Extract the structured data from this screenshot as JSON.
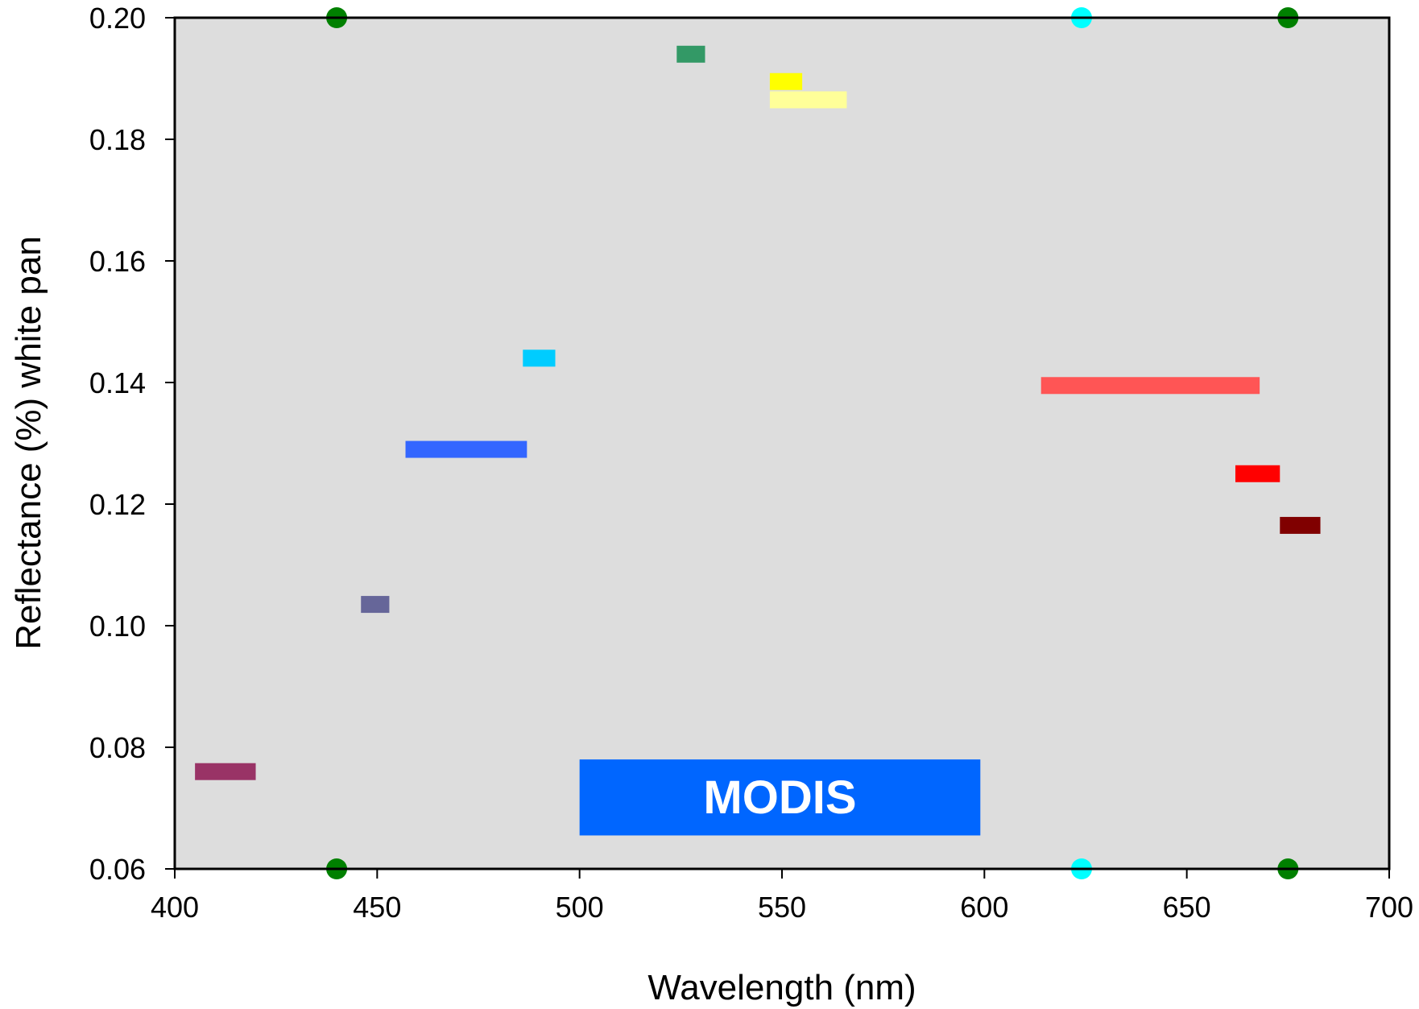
{
  "chart_data": {
    "type": "bar",
    "xlabel": "Wavelength (nm)",
    "ylabel": "Reflectance (%) white pan",
    "xlim": [
      400,
      700
    ],
    "ylim": [
      0.06,
      0.2
    ],
    "x_ticks": [
      400,
      450,
      500,
      550,
      600,
      650,
      700
    ],
    "x_tick_labels": [
      "400",
      "450",
      "500",
      "550",
      "600",
      "650",
      "700"
    ],
    "y_ticks": [
      0.06,
      0.08,
      0.1,
      0.12,
      0.14,
      0.16,
      0.18,
      0.2
    ],
    "y_tick_labels": [
      "0.06",
      "0.08",
      "0.10",
      "0.12",
      "0.14",
      "0.16",
      "0.18",
      "0.20"
    ],
    "plot_background": "#dddddd",
    "grid": false,
    "bands": [
      {
        "x_start": 405,
        "x_end": 420,
        "value": 0.076,
        "color": "#993366"
      },
      {
        "x_start": 446,
        "x_end": 453,
        "value": 0.1035,
        "color": "#666699"
      },
      {
        "x_start": 457,
        "x_end": 487,
        "value": 0.129,
        "color": "#3366ff"
      },
      {
        "x_start": 486,
        "x_end": 494,
        "value": 0.144,
        "color": "#00ccff"
      },
      {
        "x_start": 524,
        "x_end": 531,
        "value": 0.194,
        "color": "#339966"
      },
      {
        "x_start": 547,
        "x_end": 555,
        "value": 0.1895,
        "color": "#ffff00"
      },
      {
        "x_start": 547,
        "x_end": 566,
        "value": 0.1865,
        "color": "#ffff99"
      },
      {
        "x_start": 614,
        "x_end": 668,
        "value": 0.1395,
        "color": "#ff5555"
      },
      {
        "x_start": 662,
        "x_end": 673,
        "value": 0.125,
        "color": "#ff0000"
      },
      {
        "x_start": 673,
        "x_end": 683,
        "value": 0.1165,
        "color": "#800000"
      }
    ],
    "edge_markers": [
      {
        "x": 440,
        "color": "#008000"
      },
      {
        "x": 624,
        "color": "#00ffff"
      },
      {
        "x": 675,
        "color": "#008000"
      }
    ],
    "annotation": {
      "text": "MODIS",
      "box_color": "#0066ff",
      "text_color": "#ffffff",
      "x_start": 500,
      "x_end": 599,
      "y_low": 0.0655,
      "y_high": 0.078
    }
  }
}
